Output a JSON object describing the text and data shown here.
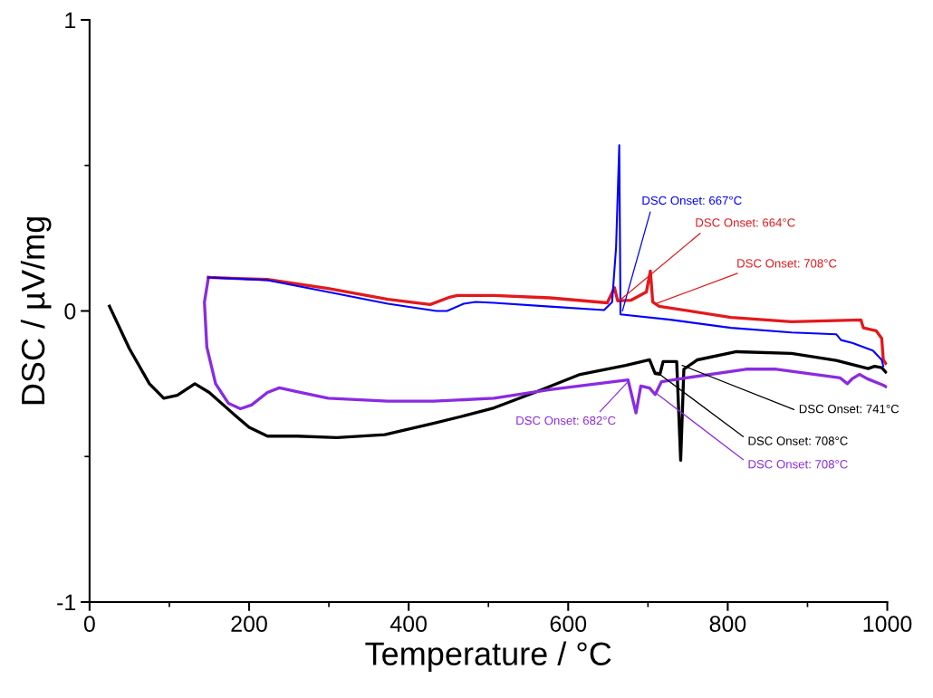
{
  "chart_data": {
    "type": "line",
    "xlabel": "Temperature / °C",
    "ylabel": "DSC / µV/mg",
    "xlim": [
      0,
      1000
    ],
    "ylim": [
      -1,
      1
    ],
    "xticks": [
      0,
      200,
      400,
      600,
      800,
      1000
    ],
    "yticks": [
      -1,
      0,
      1
    ],
    "grid": false,
    "marker": "none",
    "line_style": "solid",
    "series": [
      {
        "color": "#000000",
        "x": [
          25,
          50,
          75,
          93,
          110,
          132,
          150,
          183,
          200,
          223,
          260,
          310,
          370,
          431,
          470,
          507,
          558,
          615,
          672,
          702,
          709,
          715,
          719,
          736,
          741,
          745,
          762,
          811,
          880,
          936,
          976,
          984,
          993,
          998
        ],
        "values": [
          0.016,
          -0.13,
          -0.25,
          -0.3,
          -0.29,
          -0.25,
          -0.28,
          -0.36,
          -0.4,
          -0.43,
          -0.43,
          -0.435,
          -0.425,
          -0.386,
          -0.36,
          -0.333,
          -0.28,
          -0.218,
          -0.187,
          -0.168,
          -0.215,
          -0.217,
          -0.174,
          -0.174,
          -0.513,
          -0.2,
          -0.168,
          -0.14,
          -0.146,
          -0.17,
          -0.198,
          -0.19,
          -0.195,
          -0.21
        ]
      },
      {
        "color": "#8a2be2",
        "x": [
          149,
          144,
          147,
          158,
          174,
          189,
          203,
          223,
          238,
          260,
          299,
          374,
          431,
          507,
          577,
          675,
          685,
          691,
          702,
          709,
          717,
          748,
          823,
          861,
          941,
          950,
          956,
          965,
          975,
          995,
          998
        ],
        "values": [
          0.115,
          0.03,
          -0.124,
          -0.25,
          -0.317,
          -0.336,
          -0.323,
          -0.28,
          -0.264,
          -0.277,
          -0.3,
          -0.31,
          -0.31,
          -0.3,
          -0.27,
          -0.237,
          -0.35,
          -0.258,
          -0.265,
          -0.287,
          -0.243,
          -0.23,
          -0.2,
          -0.2,
          -0.23,
          -0.25,
          -0.233,
          -0.218,
          -0.233,
          -0.255,
          -0.26
        ]
      },
      {
        "color": "#e3191c",
        "x": [
          149,
          223,
          299,
          374,
          427,
          450,
          461,
          507,
          577,
          649,
          658,
          662,
          679,
          698,
          703,
          706,
          714,
          804,
          880,
          967,
          970,
          986,
          993,
          995,
          998
        ],
        "values": [
          0.115,
          0.108,
          0.077,
          0.04,
          0.022,
          0.046,
          0.053,
          0.053,
          0.045,
          0.028,
          0.08,
          0.035,
          0.037,
          0.065,
          0.137,
          0.031,
          0.016,
          -0.022,
          -0.037,
          -0.031,
          -0.058,
          -0.068,
          -0.094,
          -0.168,
          -0.18
        ]
      },
      {
        "color": "#0000ff",
        "x": [
          149,
          223,
          299,
          374,
          435,
          448,
          469,
          484,
          507,
          577,
          645,
          655,
          660,
          664,
          665,
          665.5,
          728,
          804,
          880,
          936,
          942,
          956,
          982,
          993,
          995
        ],
        "values": [
          0.115,
          0.106,
          0.065,
          0.025,
          0.0,
          0.0,
          0.025,
          0.031,
          0.028,
          0.015,
          0.003,
          0.03,
          0.217,
          0.57,
          0.22,
          -0.012,
          -0.03,
          -0.058,
          -0.074,
          -0.08,
          -0.1,
          -0.11,
          -0.136,
          -0.168,
          -0.19
        ]
      }
    ],
    "annotations": [
      {
        "text": "DSC Onset: 667°C",
        "x": 668,
        "y": 0.0
      },
      {
        "text": "DSC Onset: 664°C",
        "x": 664,
        "y": 0.035
      },
      {
        "text": "DSC Onset: 708°C",
        "x": 710,
        "y": 0.025
      },
      {
        "text": "DSC Onset: 741°C",
        "x": 743,
        "y": -0.187
      },
      {
        "text": "DSC Onset: 708°C",
        "x": 711,
        "y": -0.21
      },
      {
        "text": "DSC Onset: 682°C",
        "x": 676,
        "y": -0.24
      },
      {
        "text": "DSC Onset: 708°C",
        "x": 709,
        "y": -0.28
      }
    ]
  }
}
